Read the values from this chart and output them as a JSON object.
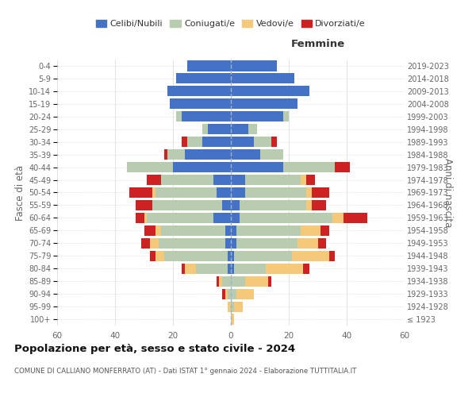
{
  "age_groups": [
    "100+",
    "95-99",
    "90-94",
    "85-89",
    "80-84",
    "75-79",
    "70-74",
    "65-69",
    "60-64",
    "55-59",
    "50-54",
    "45-49",
    "40-44",
    "35-39",
    "30-34",
    "25-29",
    "20-24",
    "15-19",
    "10-14",
    "5-9",
    "0-4"
  ],
  "birth_years": [
    "≤ 1923",
    "1924-1928",
    "1929-1933",
    "1934-1938",
    "1939-1943",
    "1944-1948",
    "1949-1953",
    "1954-1958",
    "1959-1963",
    "1964-1968",
    "1969-1973",
    "1974-1978",
    "1979-1983",
    "1984-1988",
    "1989-1993",
    "1994-1998",
    "1999-2003",
    "2004-2008",
    "2009-2013",
    "2014-2018",
    "2019-2023"
  ],
  "colors": {
    "celibi": "#4472C4",
    "coniugati": "#B8CCB0",
    "vedovi": "#F5C97A",
    "divorziati": "#CC2222"
  },
  "males": {
    "celibi": [
      0,
      0,
      0,
      0,
      1,
      1,
      2,
      2,
      6,
      3,
      5,
      6,
      20,
      16,
      10,
      8,
      17,
      21,
      22,
      19,
      15
    ],
    "coniugati": [
      0,
      0,
      1,
      3,
      11,
      22,
      23,
      22,
      23,
      24,
      21,
      18,
      16,
      6,
      5,
      2,
      2,
      0,
      0,
      0,
      0
    ],
    "vedovi": [
      0,
      1,
      1,
      1,
      4,
      3,
      3,
      2,
      1,
      0,
      1,
      0,
      0,
      0,
      0,
      0,
      0,
      0,
      0,
      0,
      0
    ],
    "divorziati": [
      0,
      0,
      1,
      1,
      1,
      2,
      3,
      4,
      3,
      6,
      8,
      5,
      0,
      1,
      2,
      0,
      0,
      0,
      0,
      0,
      0
    ]
  },
  "females": {
    "celibi": [
      0,
      0,
      0,
      0,
      1,
      1,
      2,
      2,
      3,
      3,
      5,
      5,
      18,
      10,
      8,
      6,
      18,
      23,
      27,
      22,
      16
    ],
    "coniugati": [
      0,
      1,
      2,
      5,
      11,
      20,
      21,
      22,
      32,
      23,
      21,
      19,
      18,
      8,
      6,
      3,
      2,
      0,
      0,
      0,
      0
    ],
    "vedovi": [
      1,
      3,
      6,
      8,
      13,
      13,
      7,
      7,
      4,
      2,
      2,
      2,
      0,
      0,
      0,
      0,
      0,
      0,
      0,
      0,
      0
    ],
    "divorziati": [
      0,
      0,
      0,
      1,
      2,
      2,
      3,
      3,
      8,
      5,
      6,
      3,
      5,
      0,
      2,
      0,
      0,
      0,
      0,
      0,
      0
    ]
  },
  "title": "Popolazione per età, sesso e stato civile - 2024",
  "subtitle": "COMUNE DI CALLIANO MONFERRATO (AT) - Dati ISTAT 1° gennaio 2024 - Elaborazione TUTTITALIA.IT",
  "xlabel_right": "Femmine",
  "ylabel_left": "Fasce di età",
  "ylabel_right": "Anni di nascita",
  "xlim": 60,
  "legend_labels": [
    "Celibi/Nubili",
    "Coniugati/e",
    "Vedovi/e",
    "Divorziati/e"
  ],
  "bg_color": "#FFFFFF",
  "grid_color": "#CCCCCC",
  "bar_height": 0.82
}
